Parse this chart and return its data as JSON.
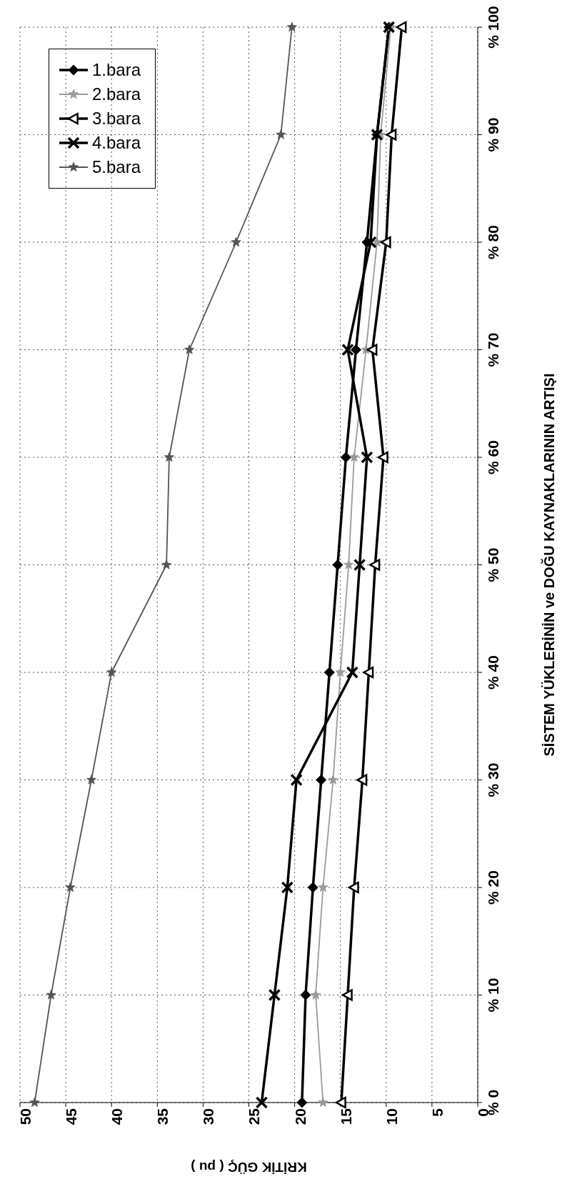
{
  "chart_data": {
    "type": "line",
    "orientation": "horizontal",
    "ylabel": "SİSTEM YÜKLERİNİN ve DOĞU KAYNAKLARININ ARTIŞI",
    "xlabel": "KRİTİK GÜÇ ( pu )",
    "categories": [
      "% 100",
      "% 90",
      "% 80",
      "% 70",
      "% 60",
      "% 50",
      "% 40",
      "% 30",
      "% 20",
      "% 10",
      "% 0"
    ],
    "xlim": [
      50,
      0
    ],
    "xticks": [
      50,
      45,
      40,
      35,
      30,
      25,
      20,
      15,
      10,
      5,
      0
    ],
    "grid": true,
    "legend": "top left",
    "line_style": "solid",
    "series": [
      {
        "name": "1.bara",
        "color": "#000000",
        "marker": "diamond",
        "values": [
          9.7,
          11.0,
          12.1,
          13.3,
          14.4,
          15.3,
          16.2,
          17.1,
          18.0,
          18.8,
          19.2
        ]
      },
      {
        "name": "2.bara",
        "color": "#9a9a9a",
        "marker": "star",
        "values": [
          9.5,
          10.6,
          11.0,
          12.2,
          13.5,
          14.1,
          15.0,
          15.8,
          16.9,
          17.7,
          16.9
        ]
      },
      {
        "name": "3.bara",
        "color": "#000000",
        "marker": "triangle",
        "values": [
          8.3,
          9.4,
          10.0,
          11.5,
          10.3,
          11.2,
          11.9,
          12.6,
          13.5,
          14.2,
          14.9
        ]
      },
      {
        "name": "4.bara",
        "color": "#000000",
        "marker": "cross",
        "values": [
          9.7,
          11.0,
          11.7,
          14.2,
          12.1,
          12.9,
          13.7,
          19.8,
          20.8,
          22.2,
          23.6
        ]
      },
      {
        "name": "5.bara",
        "color": "#555555",
        "marker": "star",
        "values": [
          20.3,
          21.5,
          26.4,
          31.5,
          33.7,
          34.0,
          40.0,
          42.2,
          44.5,
          46.6,
          48.4
        ]
      }
    ]
  }
}
